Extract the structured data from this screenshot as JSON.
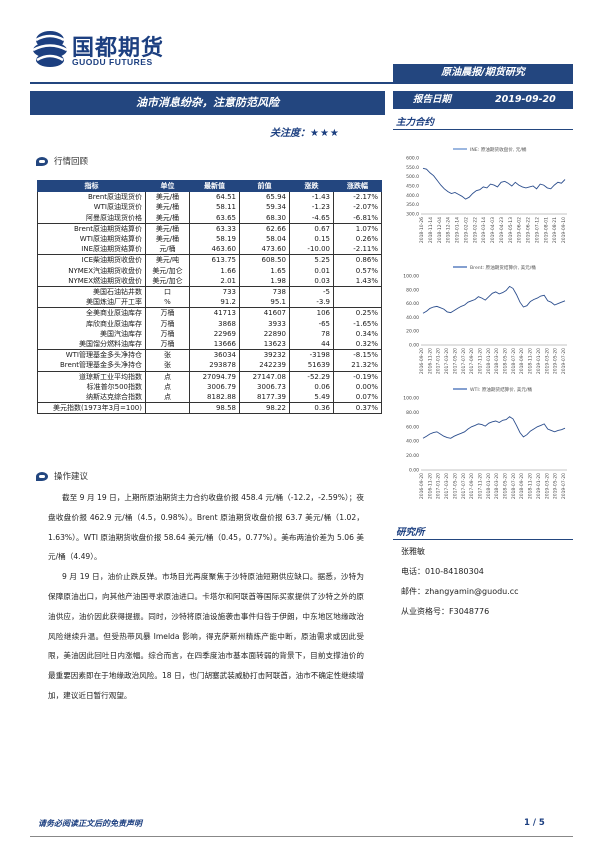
{
  "header": {
    "logo_cn": "国都期货",
    "logo_en": "GUODU FUTURES",
    "category": "原油晨报/期货研究",
    "title": "油市消息纷杂，注意防范风险",
    "focus_label": "关注度：",
    "focus_stars": "★★★",
    "report_date_label": "报告日期",
    "report_date": "2019-09-20",
    "main_contract_label": "主力合约"
  },
  "market_review": {
    "heading": "行情回顾",
    "columns": [
      "指标",
      "单位",
      "最新值",
      "前值",
      "涨跌",
      "涨跌幅"
    ],
    "rows": [
      [
        "Brent原油现货价",
        "美元/桶",
        "64.51",
        "65.94",
        "-1.43",
        "-2.17%"
      ],
      [
        "WTI原油现货价",
        "美元/桶",
        "58.11",
        "59.34",
        "-1.23",
        "-2.07%"
      ],
      [
        "阿曼原油现货价格",
        "美元/桶",
        "63.65",
        "68.30",
        "-4.65",
        "-6.81%"
      ],
      [
        "Brent原油期货结算价",
        "美元/桶",
        "63.33",
        "62.66",
        "0.67",
        "1.07%"
      ],
      [
        "WTI原油期货结算价",
        "美元/桶",
        "58.19",
        "58.04",
        "0.15",
        "0.26%"
      ],
      [
        "INE原油期货结算价",
        "元/桶",
        "463.60",
        "473.60",
        "-10.00",
        "-2.11%"
      ],
      [
        "ICE柴油期货收盘价",
        "美元/吨",
        "613.75",
        "608.50",
        "5.25",
        "0.86%"
      ],
      [
        "NYMEX汽油期货收盘价",
        "美元/加仑",
        "1.66",
        "1.65",
        "0.01",
        "0.57%"
      ],
      [
        "NYMEX燃油期货收盘价",
        "美元/加仑",
        "2.01",
        "1.98",
        "0.03",
        "1.43%"
      ],
      [
        "美国石油钻井数",
        "口",
        "733",
        "738",
        "-5",
        ""
      ],
      [
        "美国炼油厂开工率",
        "%",
        "91.2",
        "95.1",
        "-3.9",
        ""
      ],
      [
        "全美商业原油库存",
        "万桶",
        "41713",
        "41607",
        "106",
        "0.25%"
      ],
      [
        "库欣商业原油库存",
        "万桶",
        "3868",
        "3933",
        "-65",
        "-1.65%"
      ],
      [
        "美国汽油库存",
        "万桶",
        "22969",
        "22890",
        "78",
        "0.34%"
      ],
      [
        "美国馏分燃料油库存",
        "万桶",
        "13666",
        "13623",
        "44",
        "0.32%"
      ],
      [
        "WTI管理基金多头净持仓",
        "张",
        "36034",
        "39232",
        "-3198",
        "-8.15%"
      ],
      [
        "Brent管理基金多头净持仓",
        "张",
        "293878",
        "242239",
        "51639",
        "21.32%"
      ],
      [
        "道琼斯工业平均指数",
        "点",
        "27094.79",
        "27147.08",
        "-52.29",
        "-0.19%"
      ],
      [
        "标准普尔500指数",
        "点",
        "3006.79",
        "3006.73",
        "0.06",
        "0.00%"
      ],
      [
        "纳斯达克综合指数",
        "点",
        "8182.88",
        "8177.39",
        "5.49",
        "0.07%"
      ],
      [
        "美元指数(1973年3月=100)",
        "",
        "98.58",
        "98.22",
        "0.36",
        "0.37%"
      ]
    ]
  },
  "advice": {
    "heading": "操作建议",
    "paragraphs": [
      "截至 9 月 19 日，上期所原油期货主力合约收盘价报 458.4 元/桶（-12.2，-2.59%）；夜盘收盘价报 462.9 元/桶（4.5，0.98%）。Brent 原油期货收盘价报 63.7 美元/桶（1.02，1.63%）。WTI 原油期货收盘价报 58.64 美元/桶（0.45，0.77%）。美布两油价差为 5.06 美元/桶（4.49）。",
      "9 月 19 日，油价止跌反弹。市场目光再度聚焦于沙特原油短期供应缺口。据悉，沙特为保障原油出口，向其他产油国寻求原油进口。卡塔尔和阿联酋等国际买家提供了沙特之外的原油供应，油价因此获得提振。同时，沙特将原油设施袭击事件归咎于伊朗，中东地区地缘政治风险继续升温。但受热带风暴 Imelda 影响，得克萨斯州精炼产能中断，原油需求或因此受限，美油因此回吐日内涨幅。综合而言，在四季度油市基本面转弱的背景下，目前支撑油价的最重要因素即在于地缘政治风险。18 日，也门胡塞武装威胁打击阿联酋，油市不确定性继续增加，建议近日暂行观望。"
    ]
  },
  "charts": [
    {
      "legend": "INE: 原油期货收盘价, 元/桶",
      "legend_color": "#7a9fd6",
      "yticks": [
        "600.0",
        "550.0",
        "500.0",
        "450.0",
        "400.0",
        "350.0",
        "300.0"
      ],
      "ylim": [
        300,
        600
      ],
      "xticks": [
        "2018-10-26",
        "2018-11-14",
        "2018-12-04",
        "2018-12-24",
        "2019-01-14",
        "2019-02-02",
        "2019-02-22",
        "2019-03-14",
        "2019-04-03",
        "2019-04-23",
        "2019-05-13",
        "2019-06-02",
        "2019-06-22",
        "2019-07-12",
        "2019-08-01",
        "2019-08-21",
        "2019-09-10"
      ],
      "values": [
        545,
        540,
        520,
        505,
        480,
        455,
        435,
        420,
        410,
        415,
        405,
        395,
        380,
        390,
        410,
        425,
        430,
        445,
        440,
        460,
        455,
        445,
        470,
        475,
        465,
        450,
        470,
        455,
        445,
        440,
        445,
        450,
        435,
        460,
        455,
        440,
        435,
        455,
        470,
        465,
        485
      ]
    },
    {
      "legend": "Brent: 原油期货结算价, 美元/桶",
      "legend_color": "#5a7fc0",
      "yticks": [
        "100.00",
        "80.00",
        "60.00",
        "40.00",
        "20.00",
        "0.00"
      ],
      "ylim": [
        0,
        100
      ],
      "xticks": [
        "2016-09-20",
        "2016-11-20",
        "2017-01-20",
        "2017-03-20",
        "2017-05-20",
        "2017-07-20",
        "2017-09-20",
        "2017-11-20",
        "2018-01-20",
        "2018-03-20",
        "2018-05-20",
        "2018-07-20",
        "2018-09-20",
        "2018-11-20",
        "2019-01-20",
        "2019-03-20",
        "2019-05-20",
        "2019-07-20"
      ],
      "values": [
        46,
        49,
        53,
        55,
        56,
        54,
        52,
        48,
        47,
        50,
        53,
        56,
        58,
        62,
        64,
        66,
        70,
        68,
        65,
        70,
        75,
        77,
        74,
        76,
        79,
        85,
        82,
        73,
        62,
        55,
        57,
        63,
        66,
        68,
        71,
        72,
        64,
        62,
        58,
        60,
        62,
        64
      ]
    },
    {
      "legend": "WTI: 原油期货结算价, 美元/桶",
      "legend_color": "#5a7fc0",
      "yticks": [
        "100.00",
        "80.00",
        "60.00",
        "40.00",
        "20.00",
        "0.00"
      ],
      "ylim": [
        0,
        100
      ],
      "xticks": [
        "2016-09-20",
        "2016-11-20",
        "2017-01-20",
        "2017-03-20",
        "2017-05-20",
        "2017-07-20",
        "2017-09-20",
        "2017-11-20",
        "2018-01-20",
        "2018-03-20",
        "2018-05-20",
        "2018-07-20",
        "2018-09-20",
        "2018-11-20",
        "2019-01-20",
        "2019-03-20",
        "2019-05-20",
        "2019-07-20"
      ],
      "values": [
        44,
        47,
        50,
        52,
        53,
        50,
        47,
        45,
        44,
        47,
        49,
        51,
        53,
        57,
        60,
        62,
        64,
        63,
        61,
        65,
        67,
        68,
        66,
        69,
        70,
        74,
        71,
        62,
        52,
        46,
        49,
        54,
        57,
        60,
        62,
        64,
        57,
        55,
        53,
        55,
        56,
        58
      ]
    }
  ],
  "research": {
    "heading": "研究所",
    "name": "张雅敏",
    "phone": "电话：010-84180304",
    "email": "邮件：zhangyamin@guodu.cc",
    "license": "从业资格号：F3048776"
  },
  "footer": {
    "disclaimer": "请务必阅读正文后的免责声明",
    "page": "1 / 5"
  }
}
